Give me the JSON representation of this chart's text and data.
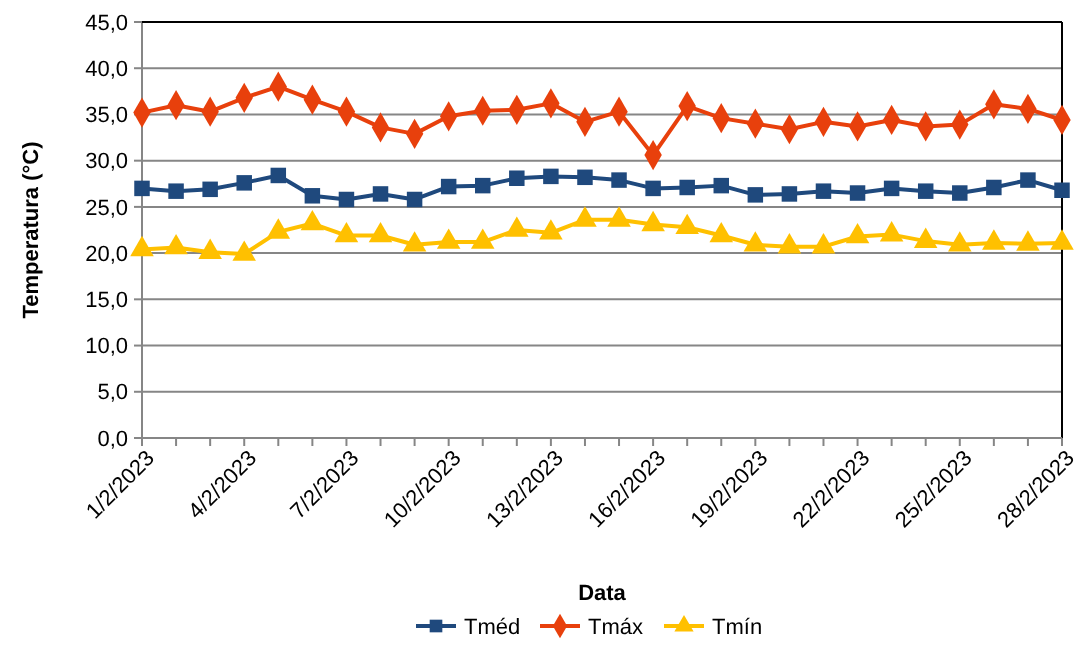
{
  "chart_data": {
    "type": "line",
    "xlabel": "Data",
    "ylabel": "Temperatura (°C)",
    "categories": [
      "1/2/2023",
      null,
      null,
      "4/2/2023",
      null,
      null,
      "7/2/2023",
      null,
      null,
      "10/2/2023",
      null,
      null,
      "13/2/2023",
      null,
      null,
      "16/2/2023",
      null,
      null,
      "19/2/2023",
      null,
      null,
      "22/2/2023",
      null,
      null,
      "25/2/2023",
      null,
      null,
      "28/2/2023"
    ],
    "series": [
      {
        "name": "Tméd",
        "color": "#1f497d",
        "marker": "square",
        "values": [
          27.0,
          26.7,
          26.9,
          27.6,
          28.4,
          26.2,
          25.8,
          26.4,
          25.8,
          27.2,
          27.3,
          28.1,
          28.3,
          28.2,
          27.9,
          27.0,
          27.1,
          27.3,
          26.3,
          26.4,
          26.7,
          26.5,
          27.0,
          26.7,
          26.5,
          27.1,
          27.9,
          26.8
        ]
      },
      {
        "name": "Tmáx",
        "color": "#e8400c",
        "marker": "diamond",
        "values": [
          35.2,
          36.0,
          35.3,
          36.8,
          38.0,
          36.6,
          35.3,
          33.6,
          32.9,
          34.8,
          35.4,
          35.5,
          36.2,
          34.2,
          35.3,
          30.6,
          35.9,
          34.6,
          34.0,
          33.4,
          34.2,
          33.7,
          34.4,
          33.7,
          33.9,
          36.1,
          35.6,
          34.4
        ]
      },
      {
        "name": "Tmín",
        "color": "#ffc000",
        "marker": "triangle",
        "values": [
          20.4,
          20.6,
          20.1,
          19.9,
          22.3,
          23.2,
          21.9,
          21.9,
          20.9,
          21.2,
          21.2,
          22.5,
          22.2,
          23.6,
          23.6,
          23.1,
          22.8,
          21.9,
          20.9,
          20.7,
          20.7,
          21.8,
          22.0,
          21.3,
          20.9,
          21.1,
          21.0,
          21.1
        ]
      }
    ],
    "ylim": [
      0,
      45
    ],
    "yticks": [
      {
        "value": 0,
        "label": "0,0"
      },
      {
        "value": 5,
        "label": "5,0"
      },
      {
        "value": 10,
        "label": "10,0"
      },
      {
        "value": 15,
        "label": "15,0"
      },
      {
        "value": 20,
        "label": "20,0"
      },
      {
        "value": 25,
        "label": "25,0"
      },
      {
        "value": 30,
        "label": "30,0"
      },
      {
        "value": 35,
        "label": "35,0"
      },
      {
        "value": 40,
        "label": "40,0"
      },
      {
        "value": 45,
        "label": "45,0"
      }
    ],
    "grid": "y",
    "legend": "bottom"
  }
}
